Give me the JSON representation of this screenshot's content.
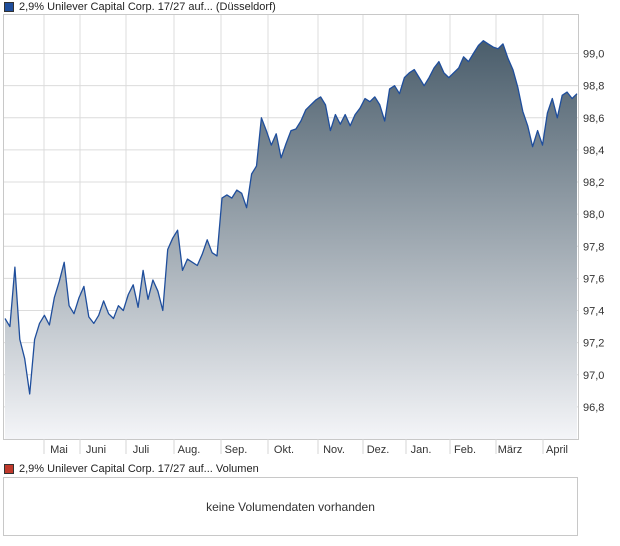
{
  "legend_price": {
    "label": "2,9% Unilever Capital Corp. 17/27 auf... (Düsseldorf)",
    "color": "#1f4e9c"
  },
  "legend_volume": {
    "label": "2,9% Unilever Capital Corp. 17/27 auf... Volumen",
    "color": "#c0392b"
  },
  "volume_panel": {
    "message": "keine Volumendaten vorhanden"
  },
  "chart_data": {
    "type": "area",
    "ylim": [
      96.6,
      99.24
    ],
    "y_ticks": [
      "99,0",
      "98,8",
      "98,6",
      "98,4",
      "98,2",
      "98,0",
      "97,8",
      "97,6",
      "97,4",
      "97,2",
      "97,0",
      "96,8"
    ],
    "y_tick_values": [
      99.0,
      98.8,
      98.6,
      98.4,
      98.2,
      98.0,
      97.8,
      97.6,
      97.4,
      97.2,
      97.0,
      96.8
    ],
    "x_ticks": [
      "Mai",
      "Juni",
      "Juli",
      "Aug.",
      "Sep.",
      "Okt.",
      "Nov.",
      "Dez.",
      "Jan.",
      "Feb.",
      "März",
      "April"
    ],
    "grid": true,
    "line_color": "#1f4e9c",
    "fill_top_color": "#4a5d6b",
    "fill_bottom_color": "#f4f5f8",
    "series": [
      {
        "x": [
          0,
          3,
          6,
          9,
          12,
          15,
          18,
          21,
          24,
          27,
          30,
          33,
          36,
          39,
          42,
          45,
          48,
          51,
          54,
          57,
          60,
          63,
          66,
          69,
          72,
          75,
          78,
          81,
          84,
          87,
          90,
          93,
          96,
          99,
          102,
          105,
          108,
          111,
          114,
          117,
          120,
          123,
          126,
          129,
          132,
          135,
          138,
          141,
          144,
          147,
          150,
          153,
          156,
          159,
          162,
          165,
          168,
          171,
          174,
          177,
          180,
          183,
          186,
          189,
          192,
          195,
          198,
          201,
          204,
          207,
          210,
          213,
          216,
          219,
          222,
          225,
          228,
          231,
          234,
          237,
          240,
          243,
          246,
          249,
          252,
          255,
          258,
          261,
          264,
          267,
          270,
          273,
          276,
          279,
          282,
          285,
          288,
          291,
          294,
          297,
          300,
          303,
          306,
          309,
          312,
          315,
          318,
          321,
          324,
          327,
          330,
          333,
          336,
          339,
          342,
          345,
          348
        ],
        "y": [
          97.35,
          97.3,
          97.67,
          97.22,
          97.1,
          96.88,
          97.22,
          97.32,
          97.37,
          97.31,
          97.48,
          97.58,
          97.7,
          97.43,
          97.38,
          97.48,
          97.55,
          97.36,
          97.32,
          97.37,
          97.46,
          97.38,
          97.35,
          97.43,
          97.4,
          97.5,
          97.56,
          97.42,
          97.65,
          97.47,
          97.59,
          97.52,
          97.4,
          97.78,
          97.85,
          97.9,
          97.65,
          97.72,
          97.7,
          97.68,
          97.75,
          97.84,
          97.76,
          97.74,
          98.1,
          98.12,
          98.1,
          98.15,
          98.13,
          98.04,
          98.25,
          98.3,
          98.6,
          98.52,
          98.43,
          98.5,
          98.35,
          98.44,
          98.52,
          98.53,
          98.58,
          98.65,
          98.68,
          98.71,
          98.73,
          98.68,
          98.52,
          98.62,
          98.56,
          98.62,
          98.55,
          98.62,
          98.66,
          98.72,
          98.7,
          98.73,
          98.68,
          98.58,
          98.78,
          98.8,
          98.75,
          98.85,
          98.88,
          98.9,
          98.85,
          98.8,
          98.85,
          98.91,
          98.95,
          98.88,
          98.85,
          98.88,
          98.91,
          98.98,
          98.95,
          99.0,
          99.05,
          99.08,
          99.06,
          99.04,
          99.03,
          99.06,
          98.97,
          98.9,
          98.79,
          98.64,
          98.55,
          98.42,
          98.52,
          98.43,
          98.63,
          98.72,
          98.6,
          98.74,
          98.76,
          98.72,
          98.75
        ]
      }
    ]
  }
}
